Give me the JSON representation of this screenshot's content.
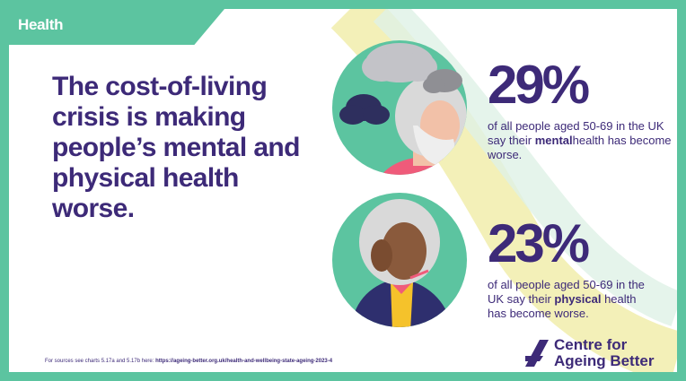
{
  "tag": "Health",
  "headline": "The cost-of-living crisis is making people’s mental and physical health worse.",
  "stats": [
    {
      "value": "29%",
      "text_before": "of all people aged 50-69 in the UK say their ",
      "emphasis": "mental",
      "text_after": "health has become worse."
    },
    {
      "value": "23%",
      "text_before": "of all people aged 50-69 in the UK say their ",
      "emphasis": "physical",
      "text_after": " health has become worse."
    }
  ],
  "source": {
    "prefix": "For sources see charts 5.17a and 5.17b here:",
    "url": "https://ageing-better.org.uk/health-and-wellbeing-state-ageing-2023-4"
  },
  "logo": {
    "line1": "Centre for",
    "line2": "Ageing Better"
  },
  "colors": {
    "brand_purple": "#3d2a78",
    "brand_green": "#5cc4a0",
    "swoosh_yellow": "#f2eeb0"
  }
}
